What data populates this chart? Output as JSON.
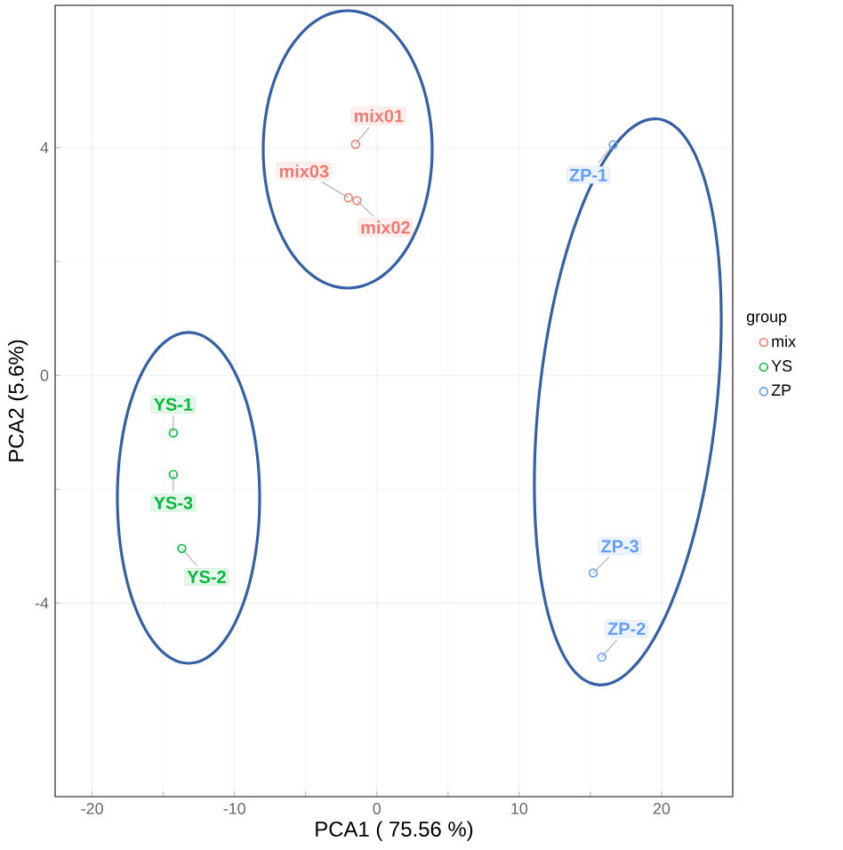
{
  "chart_data": {
    "type": "scatter",
    "xlabel": "PCA1 ( 75.56 %)",
    "ylabel": "PCA2 (5.6%)",
    "legend_title": "group",
    "xlim": [
      -22.6,
      25
    ],
    "ylim": [
      -7.4,
      6.5
    ],
    "xticks": [
      -20,
      -10,
      0,
      10,
      20
    ],
    "yticks": [
      -4,
      0,
      4
    ],
    "grid": true,
    "legend": "right",
    "marker": "circle",
    "series": [
      {
        "name": "mix",
        "color": "#f8766d",
        "x": [
          -1.5,
          -1.4,
          -2.0
        ],
        "values": [
          4.06,
          3.07,
          3.12
        ]
      },
      {
        "name": "YS",
        "color": "#00ba38",
        "x": [
          -14.3,
          -13.7,
          -14.3
        ],
        "values": [
          -1.01,
          -3.04,
          -1.74
        ]
      },
      {
        "name": "ZP",
        "color": "#619cff",
        "x": [
          16.6,
          15.8,
          15.2
        ],
        "values": [
          4.05,
          -4.95,
          -3.47
        ]
      }
    ],
    "annotations": [
      {
        "text": "mix01",
        "x": -1.5,
        "y": 4.06
      },
      {
        "text": "mix02",
        "x": -1.4,
        "y": 3.07
      },
      {
        "text": "mix03",
        "x": -2.0,
        "y": 3.12
      },
      {
        "text": "YS-1",
        "x": -14.3,
        "y": -1.01
      },
      {
        "text": "YS-2",
        "x": -13.7,
        "y": -3.04
      },
      {
        "text": "YS-3",
        "x": -14.3,
        "y": -1.74
      },
      {
        "text": "ZP-1",
        "x": 16.6,
        "y": 4.05
      },
      {
        "text": "ZP-2",
        "x": 15.8,
        "y": -4.95
      },
      {
        "text": "ZP-3",
        "x": 15.2,
        "y": -3.47
      }
    ]
  }
}
